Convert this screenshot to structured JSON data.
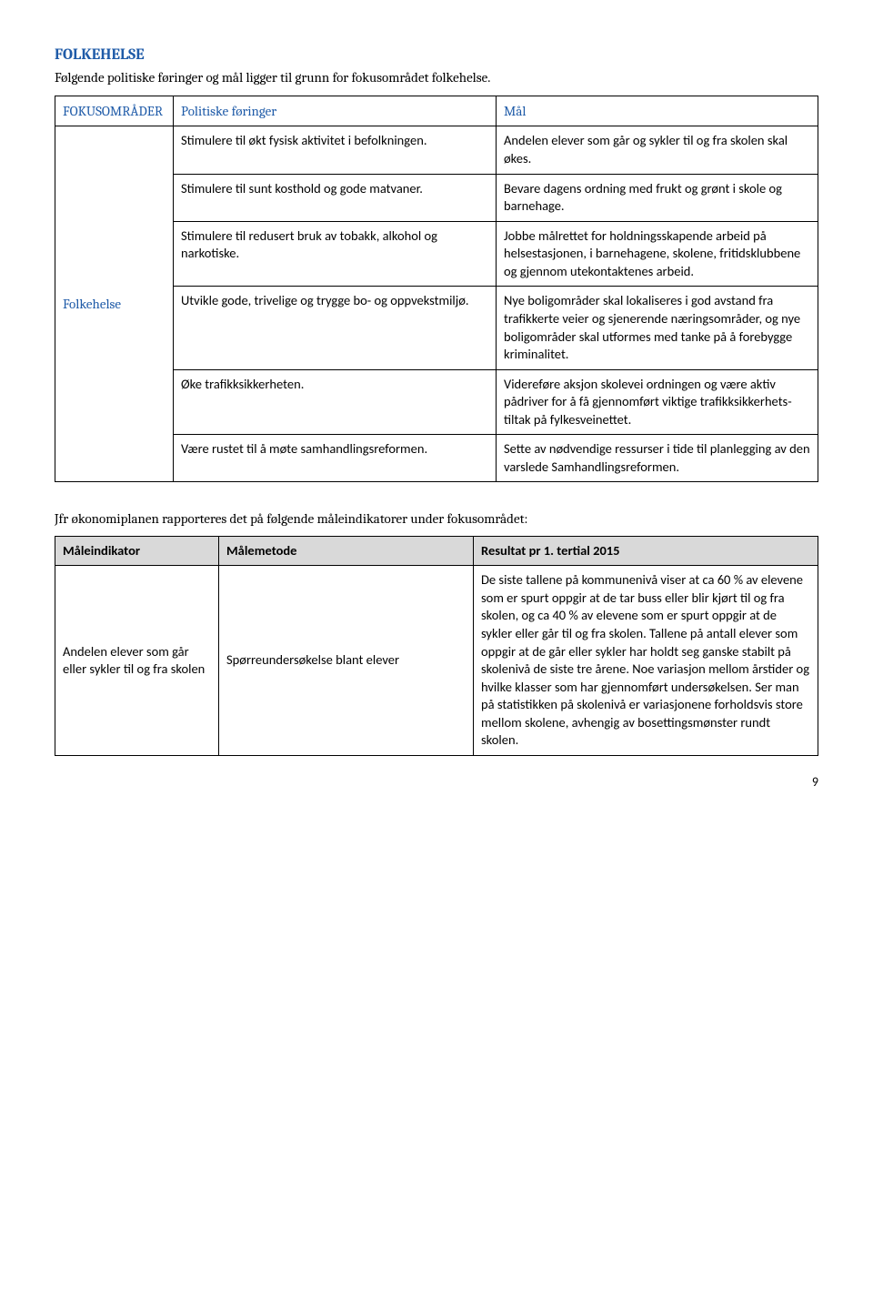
{
  "section_title": "FOLKEHELSE",
  "intro": "Følgende politiske føringer og mål ligger til grunn for fokusområdet folkehelse.",
  "table1": {
    "headers": {
      "focus": "FOKUSOMRÅDER",
      "pol": "Politiske føringer",
      "mal": "Mål"
    },
    "focus_label": "Folkehelse",
    "rows": [
      {
        "pol": "Stimulere til økt fysisk aktivitet i befolkningen.",
        "mal": "Andelen elever som går og sykler til og fra skolen skal økes."
      },
      {
        "pol": "Stimulere til sunt kosthold og gode matvaner.",
        "mal": "Bevare dagens ordning med frukt og grønt i skole og barnehage."
      },
      {
        "pol": "Stimulere til redusert bruk av tobakk, alkohol og narkotiske.",
        "mal": "Jobbe målrettet for holdningsskapende arbeid på helsestasjonen, i barnehagene, skolene, fritidsklubbene og gjennom utekontaktenes arbeid."
      },
      {
        "pol": "Utvikle gode, trivelige og trygge bo- og oppvekstmiljø.",
        "mal": "Nye boligområder skal lokaliseres i god avstand fra trafikkerte veier og sjenerende næringsområder, og nye boligområder skal utformes med tanke på å forebygge kriminalitet."
      },
      {
        "pol": "Øke trafikksikkerheten.",
        "mal": "Videreføre aksjon skolevei ordningen og være aktiv pådriver for å få gjennomført viktige trafikksikkerhets-tiltak på fylkesveinettet."
      },
      {
        "pol": "Være rustet til å møte samhandlingsreformen.",
        "mal": "Sette av nødvendige ressurser i tide til planlegging av den varslede Samhandlingsreformen."
      }
    ]
  },
  "subhead": "Jfr økonomiplanen rapporteres det på følgende måleindikatorer under fokusområdet:",
  "table2": {
    "headers": {
      "ind": "Måleindikator",
      "met": "Målemetode",
      "res": "Resultat pr 1. tertial 2015"
    },
    "row": {
      "ind": "Andelen elever som går eller sykler til og fra skolen",
      "met": "Spørreundersøkelse blant elever",
      "res": "De siste tallene på kommunenivå viser at ca 60 % av elevene som er spurt oppgir at de tar buss eller blir kjørt til og fra skolen, og ca 40 % av elevene som er spurt oppgir at de sykler eller går til og fra skolen. Tallene på antall elever som oppgir at de går eller sykler har holdt seg ganske stabilt på skolenivå de siste tre årene. Noe variasjon mellom årstider og hvilke klasser som har gjennomført undersøkelsen. Ser man på statistikken på skolenivå er variasjonene forholdsvis store mellom skolene, avhengig av bosettingsmønster rundt skolen."
    }
  },
  "page_number": "9"
}
